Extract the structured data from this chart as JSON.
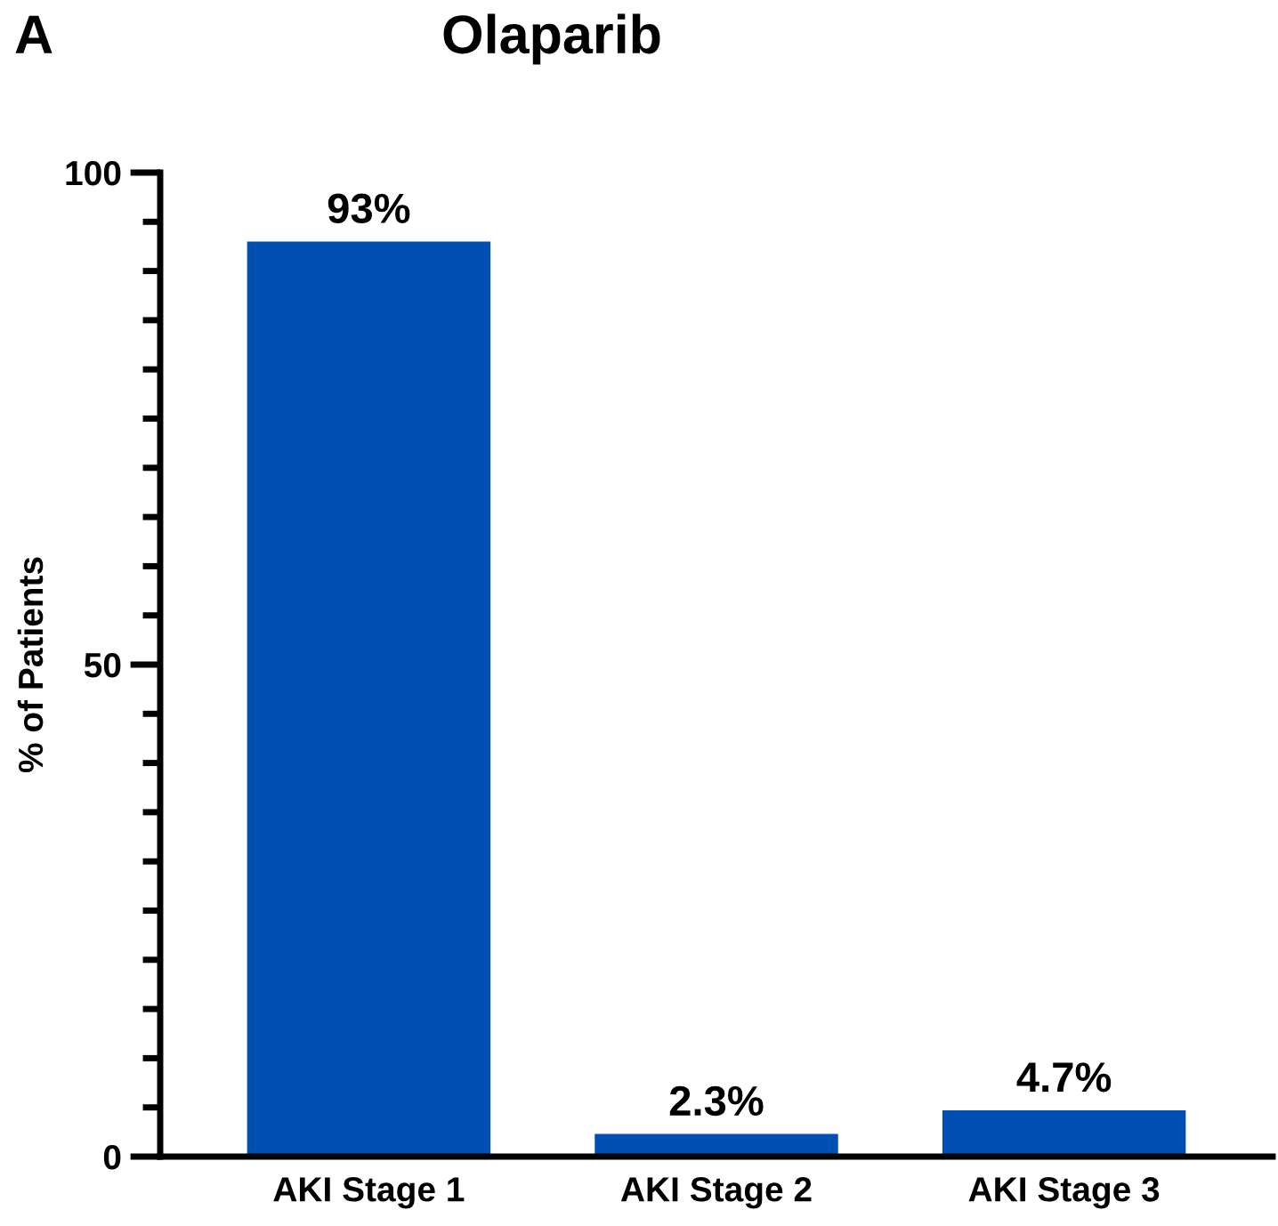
{
  "chart_data": {
    "type": "bar",
    "title": "Olaparib",
    "ylabel": "% of Patients",
    "categories": [
      "AKI Stage 1",
      "AKI Stage 2",
      "AKI Stage 3"
    ],
    "values": [
      93,
      2.3,
      4.7
    ],
    "value_labels": [
      "93%",
      "2.3%",
      "4.7%"
    ],
    "color": "#0050b4",
    "ylim": [
      0,
      100
    ],
    "yticks": [
      0,
      50,
      100
    ],
    "grid": false,
    "annotations": [
      "A"
    ]
  }
}
